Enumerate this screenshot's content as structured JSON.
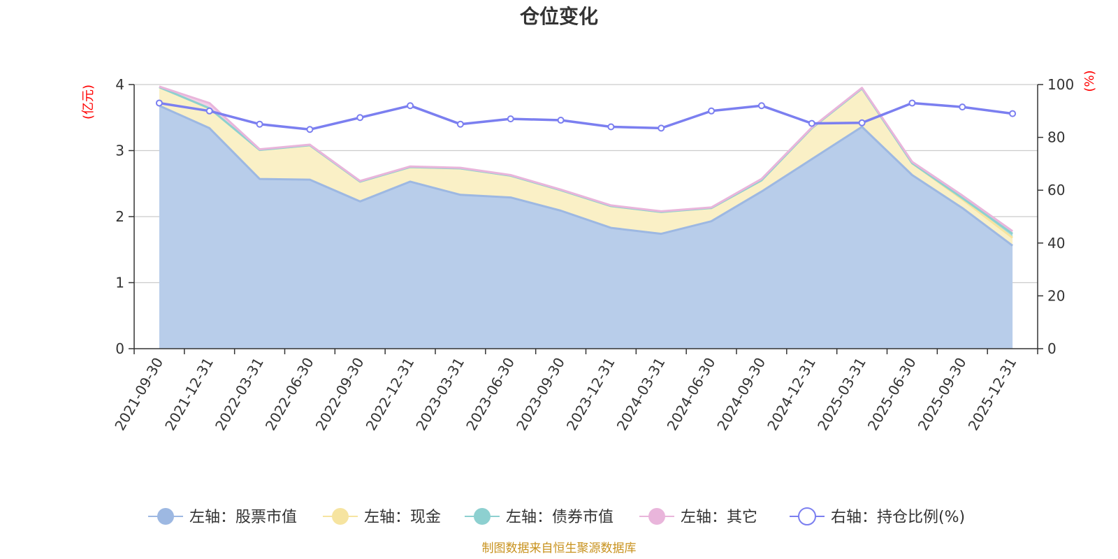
{
  "chart_data": {
    "type": "area",
    "title": "仓位变化",
    "left_unit": "(亿元)",
    "right_unit": "(%)",
    "categories": [
      "2021-09-30",
      "2021-12-31",
      "2022-03-31",
      "2022-06-30",
      "2022-09-30",
      "2022-12-31",
      "2023-03-31",
      "2023-06-30",
      "2023-09-30",
      "2023-12-31",
      "2024-03-31",
      "2024-06-30",
      "2024-09-30",
      "2024-12-31",
      "2025-03-31",
      "2025-06-30",
      "2025-09-30",
      "2025-12-31"
    ],
    "y_left": {
      "min": 0,
      "max": 4,
      "ticks": [
        "0",
        "1",
        "2",
        "3",
        "4"
      ]
    },
    "y_right": {
      "min": 0,
      "max": 100,
      "ticks": [
        "0",
        "20",
        "40",
        "60",
        "80",
        "100"
      ]
    },
    "grid": true,
    "stacked": true,
    "series": [
      {
        "name": "左轴：股票市值",
        "axis": "left",
        "type": "area",
        "color": "#9db8e2",
        "fill": "#b8cdea",
        "values": [
          3.68,
          3.34,
          2.57,
          2.56,
          2.23,
          2.53,
          2.33,
          2.29,
          2.09,
          1.83,
          1.74,
          1.93,
          2.38,
          2.87,
          3.36,
          2.63,
          2.13,
          1.56
        ]
      },
      {
        "name": "左轴：现金",
        "axis": "left",
        "type": "area",
        "color": "#f6e4a0",
        "fill": "#faf0c6",
        "values": [
          0.28,
          0.3,
          0.44,
          0.52,
          0.3,
          0.22,
          0.4,
          0.33,
          0.31,
          0.33,
          0.33,
          0.2,
          0.17,
          0.47,
          0.58,
          0.18,
          0.13,
          0.12
        ]
      },
      {
        "name": "左轴：债券市值",
        "axis": "left",
        "type": "area",
        "color": "#8dd0d0",
        "fill": "#a8dcdc",
        "values": [
          0,
          0,
          0,
          0,
          0,
          0,
          0,
          0,
          0,
          0,
          0,
          0,
          0,
          0,
          0,
          0,
          0.02,
          0.06
        ]
      },
      {
        "name": "左轴：其它",
        "axis": "left",
        "type": "area",
        "color": "#e9b5db",
        "fill": "#f2cfe7",
        "values": [
          0.01,
          0.08,
          0.01,
          0.01,
          0.01,
          0.01,
          0.01,
          0.01,
          0.01,
          0.01,
          0.01,
          0.01,
          0.02,
          0.01,
          0.01,
          0.02,
          0.04,
          0.04
        ]
      },
      {
        "name": "右轴：持仓比例(%)",
        "axis": "right",
        "type": "line",
        "color": "#7b7ff0",
        "values": [
          93,
          90,
          85,
          83,
          87.5,
          92,
          85,
          87,
          86.5,
          84,
          83.5,
          90,
          92,
          85.3,
          85.5,
          93,
          91.5,
          89
        ]
      }
    ],
    "legend_position": "bottom",
    "source": "制图数据来自恒生聚源数据库"
  }
}
